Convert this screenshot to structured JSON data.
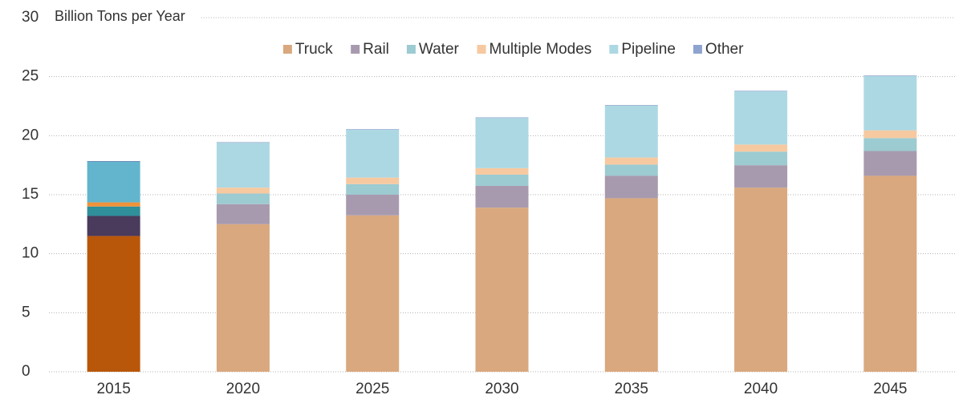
{
  "chart_data": {
    "type": "stacked_bar",
    "y_label": "Billion Tons per Year",
    "categories": [
      "2015",
      "2020",
      "2025",
      "2030",
      "2035",
      "2040",
      "2045"
    ],
    "series": [
      {
        "name": "Truck",
        "color": "#d9a87e",
        "colors": [
          "#b8570a",
          "#d9a87e",
          "#d9a87e",
          "#d9a87e",
          "#d9a87e",
          "#d9a87e",
          "#d9a87e"
        ],
        "values": [
          11.5,
          12.5,
          13.25,
          13.9,
          14.7,
          15.6,
          16.6
        ]
      },
      {
        "name": "Rail",
        "color": "#a89aae",
        "colors": [
          "#4a3a5c",
          "#a89aae",
          "#a89aae",
          "#a89aae",
          "#a89aae",
          "#a89aae",
          "#a89aae"
        ],
        "values": [
          1.7,
          1.7,
          1.75,
          1.85,
          1.9,
          1.9,
          2.1
        ]
      },
      {
        "name": "Water",
        "color": "#9ccbd1",
        "colors": [
          "#2f8f9b",
          "#9ccbd1",
          "#9ccbd1",
          "#9ccbd1",
          "#9ccbd1",
          "#9ccbd1",
          "#9ccbd1"
        ],
        "values": [
          0.8,
          0.9,
          0.9,
          0.95,
          0.95,
          1.15,
          1.1
        ]
      },
      {
        "name": "Multiple Modes",
        "color": "#f7c9a0",
        "colors": [
          "#f0923a",
          "#f7c9a0",
          "#f7c9a0",
          "#f7c9a0",
          "#f7c9a0",
          "#f7c9a0",
          "#f7c9a0"
        ],
        "values": [
          0.35,
          0.5,
          0.55,
          0.55,
          0.6,
          0.6,
          0.65
        ]
      },
      {
        "name": "Pipeline",
        "color": "#acd8e3",
        "colors": [
          "#62b5cc",
          "#acd8e3",
          "#acd8e3",
          "#acd8e3",
          "#acd8e3",
          "#acd8e3",
          "#acd8e3"
        ],
        "values": [
          3.45,
          3.8,
          4.05,
          4.25,
          4.4,
          4.5,
          4.6
        ]
      },
      {
        "name": "Other",
        "color": "#8ea4cf",
        "colors": [
          "#5a73a8",
          "#8ea4cf",
          "#8ea4cf",
          "#8ea4cf",
          "#8ea4cf",
          "#8ea4cf",
          "#8ea4cf"
        ],
        "values": [
          0.05,
          0.05,
          0.05,
          0.05,
          0.05,
          0.05,
          0.05
        ]
      }
    ],
    "ylim": [
      0,
      30
    ],
    "yticks": [
      0,
      5,
      10,
      15,
      20,
      25,
      30
    ],
    "grid": true,
    "legend": "top"
  }
}
